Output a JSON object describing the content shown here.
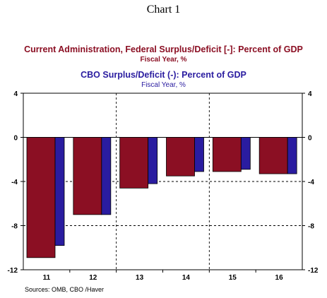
{
  "title": "Chart 1",
  "legend": [
    {
      "name": "Current Administration, Federal Surplus/Deficit [-]: Percent of GDP",
      "sub": "Fiscal Year, %",
      "color": "#8b0f23"
    },
    {
      "name": "CBO Surplus/Deficit (-): Percent of GDP",
      "sub": "Fiscal Year, %",
      "color": "#2a1ca0"
    }
  ],
  "source": "Sources: OMB, CBO /Haver",
  "chart_data": {
    "type": "bar",
    "categories": [
      "11",
      "12",
      "13",
      "14",
      "15",
      "16"
    ],
    "series": [
      {
        "name": "Current Administration, Federal Surplus/Deficit [-]: Percent of GDP",
        "values": [
          -10.9,
          -7.0,
          -4.6,
          -3.5,
          -3.1,
          -3.3
        ],
        "color": "#8b0f23"
      },
      {
        "name": "CBO Surplus/Deficit (-): Percent of GDP",
        "values": [
          -9.8,
          -7.0,
          -4.2,
          -3.1,
          -2.9,
          -3.3
        ],
        "color": "#2a1ca0"
      }
    ],
    "ylim": [
      -12,
      4
    ],
    "yticks": [
      "4",
      "0",
      "-4",
      "-8",
      "-12"
    ],
    "ytick_values": [
      4,
      0,
      -4,
      -8,
      -12
    ],
    "grid": true
  }
}
